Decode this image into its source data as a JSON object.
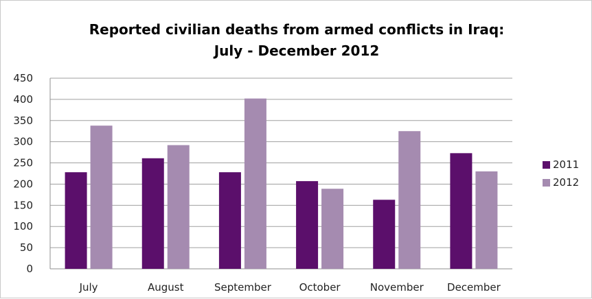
{
  "chart_data": {
    "type": "bar",
    "title_lines": [
      "Reported civilian deaths from armed conflicts in Iraq:",
      "July - December 2012"
    ],
    "categories": [
      "July",
      "August",
      "September",
      "October",
      "November",
      "December"
    ],
    "series": [
      {
        "name": "2011",
        "values": [
          228,
          261,
          228,
          207,
          163,
          273
        ],
        "color": "#5b0f6b"
      },
      {
        "name": "2012",
        "values": [
          338,
          292,
          402,
          189,
          325,
          230
        ],
        "color": "#a58bb0"
      }
    ],
    "ylim": [
      0,
      450
    ],
    "yticks": [
      0,
      50,
      100,
      150,
      200,
      250,
      300,
      350,
      400,
      450
    ],
    "grid": true,
    "legend_position": "right",
    "colors": {
      "grid": "#9f9f9f",
      "axis": "#8f8f8f",
      "text": "#222222"
    }
  }
}
